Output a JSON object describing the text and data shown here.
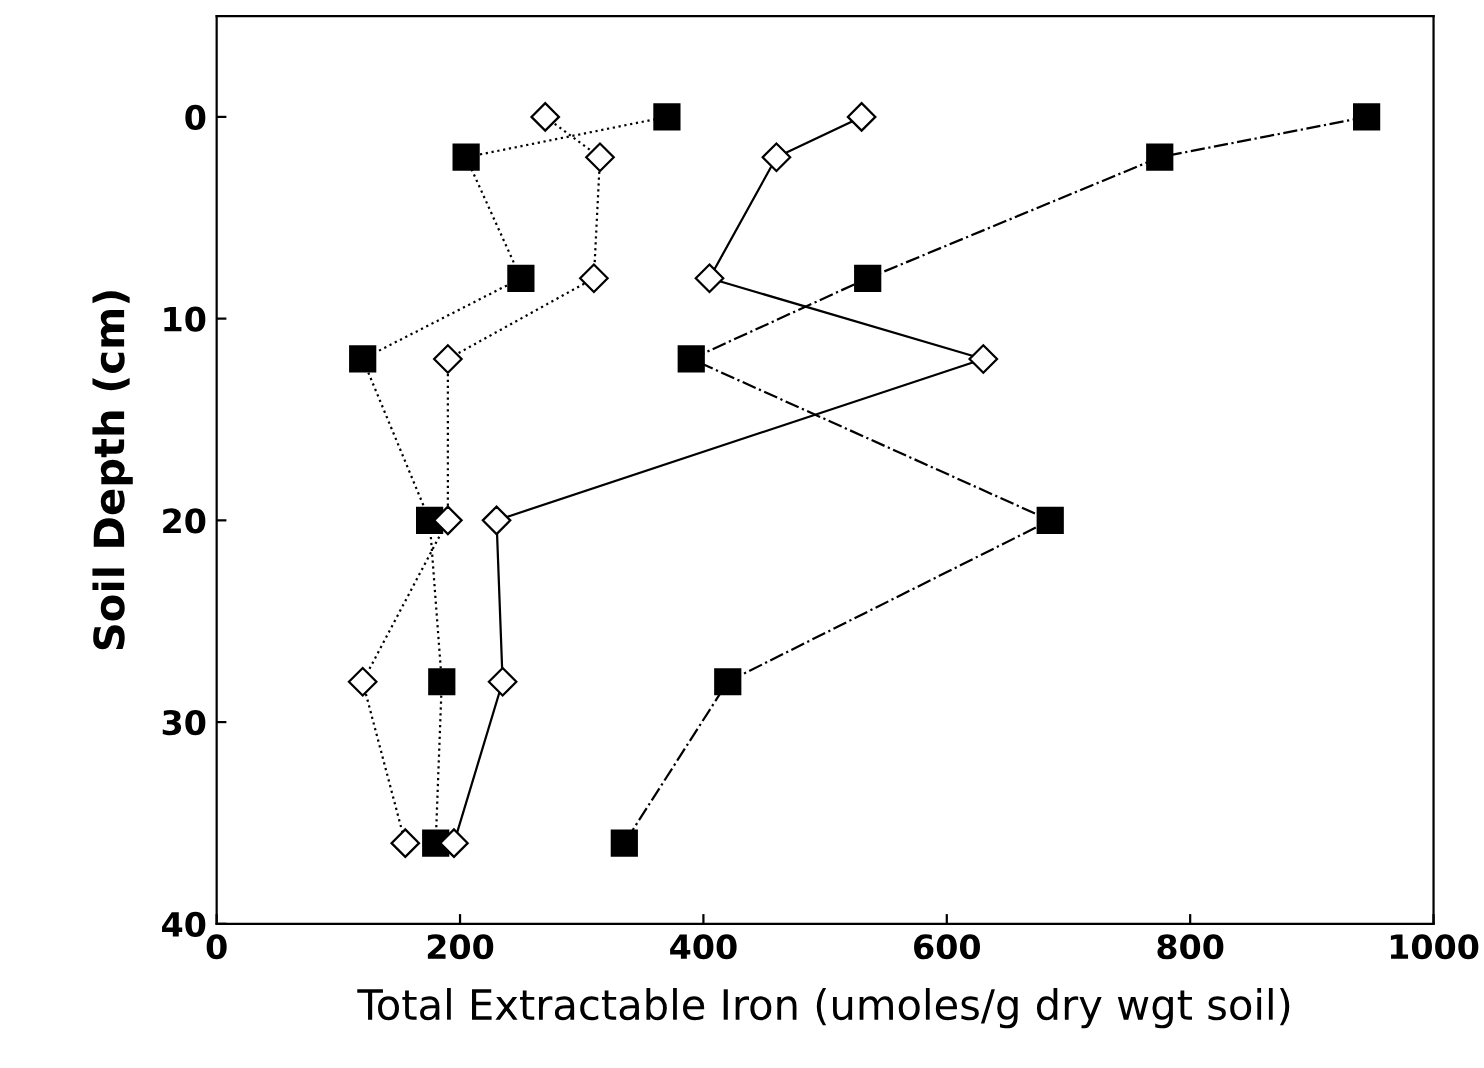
{
  "chart_data": {
    "type": "line",
    "xlabel": "Total Extractable Iron (umoles/g dry wgt soil)",
    "ylabel": "Soil Depth (cm)",
    "xlim": [
      0,
      1000
    ],
    "xticks": [
      0,
      200,
      400,
      600,
      800,
      1000
    ],
    "ylim": [
      40,
      -5
    ],
    "yticks": [
      0,
      10,
      20,
      30,
      40
    ],
    "grid": false,
    "legend": false,
    "series": [
      {
        "color": "#000000",
        "marker": "square",
        "line_style": "dashdot",
        "x": [
          945,
          775,
          535,
          390,
          685,
          420,
          335
        ],
        "values": [
          0,
          2,
          8,
          12,
          20,
          28,
          36
        ]
      },
      {
        "color": "#000000",
        "marker": "square",
        "line_style": "dotted",
        "x": [
          370,
          205,
          250,
          120,
          175,
          185,
          180
        ],
        "values": [
          0,
          2,
          8,
          12,
          20,
          28,
          36
        ]
      },
      {
        "color": "#000000",
        "marker": "diamond",
        "line_style": "solid",
        "x": [
          530,
          460,
          405,
          630,
          230,
          235,
          195
        ],
        "values": [
          0,
          2,
          8,
          12,
          20,
          28,
          36
        ]
      },
      {
        "color": "#000000",
        "marker": "diamond",
        "line_style": "dotted",
        "x": [
          270,
          315,
          310,
          190,
          190,
          120,
          155
        ],
        "values": [
          0,
          2,
          8,
          12,
          20,
          28,
          36
        ]
      }
    ]
  }
}
